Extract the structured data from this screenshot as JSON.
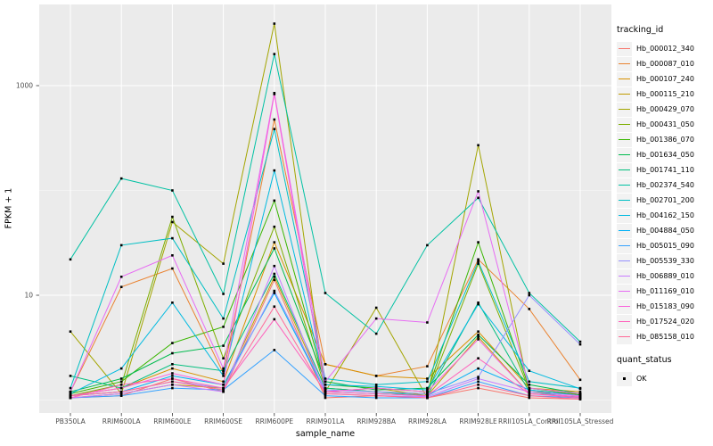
{
  "chart_data": {
    "type": "line",
    "title": "",
    "xlabel": "sample_name",
    "ylabel": "FPKM + 1",
    "y_scale": "log10",
    "y_tick_labels": [
      "10",
      "1000"
    ],
    "y_tick_values": [
      10,
      1000
    ],
    "y_minor_gridline_values": [
      1,
      100
    ],
    "ylim": [
      0.9,
      5800
    ],
    "grid": true,
    "legend_position": "right",
    "panel_bg": "#EBEBEB",
    "gridline_color": "#FFFFFF",
    "point_color": "#000000",
    "point_shape": "small-black-square",
    "tick_label_color": "#4D4D4D",
    "categories": [
      "PB350LA",
      "RRIM600LA",
      "RRIM600LE",
      "RRIM600SE",
      "RRIM600PE",
      "RRIM901LA",
      "RRIM928BA",
      "RRIM928LA",
      "RRIM928LE",
      "RRII105LA_Control",
      "RRII105LA_Stressed"
    ],
    "series": [
      {
        "name": "Hb_000012_340",
        "color": "#F8766D",
        "values": [
          1.05,
          1.1,
          1.6,
          1.2,
          14,
          1.05,
          1.1,
          1.05,
          1.3,
          1.05,
          1.02
        ]
      },
      {
        "name": "Hb_000087_010",
        "color": "#EA8331",
        "values": [
          1.2,
          12,
          18,
          1.8,
          475,
          2.2,
          1.7,
          2.1,
          22,
          7.4,
          1.56
        ]
      },
      {
        "name": "Hb_000107_240",
        "color": "#D89000",
        "values": [
          1.1,
          1.3,
          2.0,
          1.5,
          32,
          2.2,
          1.7,
          1.6,
          4.5,
          1.3,
          1.2
        ]
      },
      {
        "name": "Hb_000115_210",
        "color": "#C09B00",
        "values": [
          1.05,
          1.15,
          1.4,
          1.3,
          15,
          1.2,
          1.3,
          1.1,
          4.0,
          1.15,
          1.08
        ]
      },
      {
        "name": "Hb_000429_070",
        "color": "#A3A500",
        "values": [
          4.5,
          1.15,
          50,
          20,
          3900,
          1.2,
          7.6,
          1.05,
          270,
          1.2,
          1.15
        ]
      },
      {
        "name": "Hb_000431_050",
        "color": "#7CAE00",
        "values": [
          1.1,
          1.4,
          56,
          2.5,
          45,
          1.3,
          1.2,
          1.15,
          20,
          1.25,
          1.1
        ]
      },
      {
        "name": "Hb_001386_070",
        "color": "#39B600",
        "values": [
          1.15,
          1.5,
          3.5,
          5.0,
          80,
          1.4,
          1.3,
          1.2,
          32,
          1.3,
          1.12
        ]
      },
      {
        "name": "Hb_001634_050",
        "color": "#00BB4E",
        "values": [
          1.2,
          1.6,
          2.8,
          3.3,
          28,
          1.5,
          1.25,
          1.3,
          4.2,
          1.4,
          1.15
        ]
      },
      {
        "name": "Hb_001741_110",
        "color": "#00BF7D",
        "values": [
          1.7,
          1.3,
          2.2,
          1.9,
          16,
          1.3,
          1.2,
          1.1,
          8.5,
          1.2,
          1.05
        ]
      },
      {
        "name": "Hb_002374_540",
        "color": "#00C1A3",
        "values": [
          22,
          130,
          100,
          10.3,
          2000,
          10.5,
          4.3,
          30,
          85,
          10.5,
          3.6
        ]
      },
      {
        "name": "Hb_002701_200",
        "color": "#00BFC4",
        "values": [
          1.3,
          30,
          35,
          6.0,
          385,
          1.6,
          1.4,
          1.5,
          21,
          1.5,
          1.3
        ]
      },
      {
        "name": "Hb_004162_150",
        "color": "#00BAE0",
        "values": [
          1.15,
          2.0,
          8.5,
          1.7,
          155,
          1.4,
          1.35,
          1.25,
          8.2,
          1.9,
          1.28
        ]
      },
      {
        "name": "Hb_004884_050",
        "color": "#00B0F6",
        "values": [
          1.1,
          1.2,
          1.7,
          1.4,
          10.5,
          1.2,
          1.15,
          1.1,
          2.0,
          1.25,
          1.1
        ]
      },
      {
        "name": "Hb_005015_090",
        "color": "#35A2FF",
        "values": [
          1.05,
          1.1,
          1.3,
          1.25,
          3.0,
          1.1,
          1.05,
          1.05,
          1.5,
          1.1,
          1.05
        ]
      },
      {
        "name": "Hb_005539_330",
        "color": "#9590FF",
        "values": [
          1.1,
          1.2,
          1.5,
          1.3,
          11,
          1.25,
          1.2,
          1.15,
          1.66,
          10,
          3.4
        ]
      },
      {
        "name": "Hb_006889_010",
        "color": "#C77CFF",
        "values": [
          1.05,
          1.15,
          1.4,
          1.2,
          19,
          1.15,
          1.1,
          1.08,
          1.6,
          1.2,
          1.1
        ]
      },
      {
        "name": "Hb_011169_010",
        "color": "#E76BF3",
        "values": [
          1.2,
          15,
          24,
          2.0,
          850,
          1.5,
          6.0,
          5.5,
          98,
          1.3,
          1.15
        ]
      },
      {
        "name": "Hb_015183_090",
        "color": "#FA62DB",
        "values": [
          1.1,
          1.3,
          1.8,
          1.4,
          830,
          1.2,
          1.3,
          1.2,
          3.8,
          1.15,
          1.08
        ]
      },
      {
        "name": "Hb_017524_020",
        "color": "#FF62BC",
        "values": [
          1.05,
          1.4,
          1.6,
          1.3,
          5.9,
          1.2,
          1.15,
          1.1,
          2.5,
          1.15,
          1.05
        ]
      },
      {
        "name": "Hb_085158_010",
        "color": "#FF6A98",
        "values": [
          1.1,
          1.2,
          1.5,
          1.25,
          7.8,
          1.15,
          1.1,
          1.05,
          1.4,
          1.1,
          1.02
        ]
      }
    ]
  },
  "legend": {
    "tracking_title": "tracking_id",
    "quant_title": "quant_status",
    "quant_items": [
      {
        "label": "OK"
      }
    ]
  }
}
